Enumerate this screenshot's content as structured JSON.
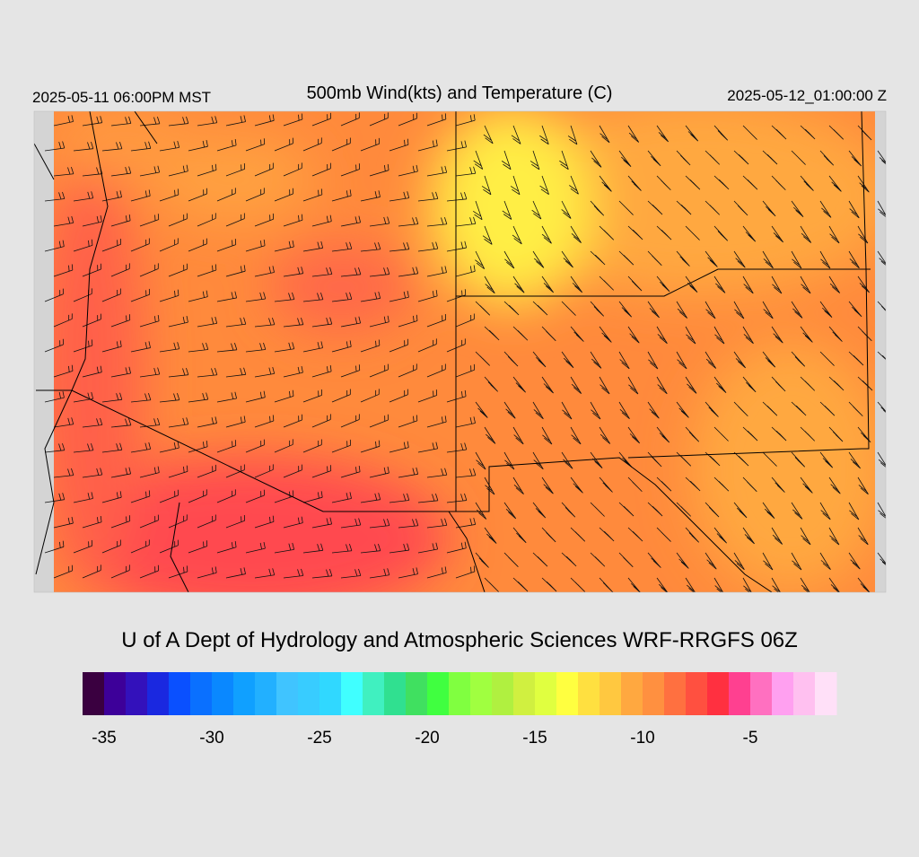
{
  "header": {
    "valid_local": "2025-05-11 06:00PM MST",
    "title": "500mb Wind(kts) and Temperature (C)",
    "valid_utc": "2025-05-12_01:00:00 Z"
  },
  "credit": "U of A Dept of Hydrology and Atmospheric Sciences WRF-RRGFS 06Z",
  "colorbar": {
    "range": [
      -36,
      -1
    ],
    "ticks": [
      -35,
      -30,
      -25,
      -20,
      -15,
      -10,
      -5
    ],
    "colors": [
      "#3a0040",
      "#3d0099",
      "#3311bb",
      "#1a28e0",
      "#0a50ff",
      "#0a70ff",
      "#0a88ff",
      "#10a0ff",
      "#22b0ff",
      "#40c4ff",
      "#38ccff",
      "#30d8ff",
      "#40ffff",
      "#40f0c0",
      "#30e090",
      "#40e060",
      "#40ff40",
      "#80ff40",
      "#a0ff40",
      "#b0f040",
      "#d0f040",
      "#e0ff40",
      "#ffff40",
      "#ffe040",
      "#ffc840",
      "#ffa840",
      "#ff9040",
      "#ff7040",
      "#ff5040",
      "#ff3040",
      "#ff4090",
      "#ff70c0",
      "#ffa0f0",
      "#ffc0f0",
      "#ffe0f8"
    ]
  }
}
